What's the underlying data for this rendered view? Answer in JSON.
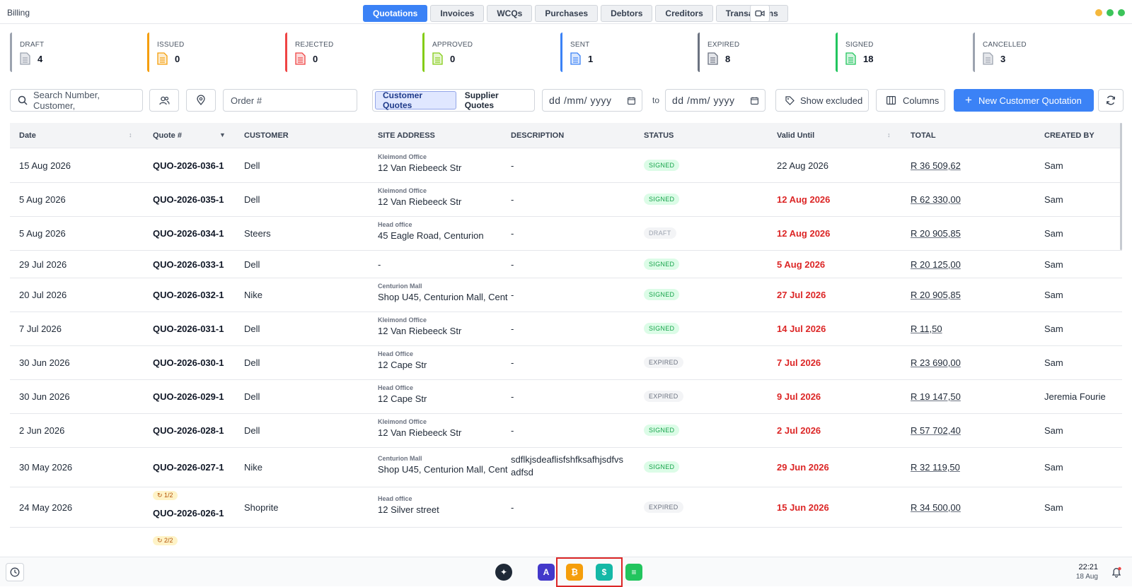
{
  "app": {
    "title": "Billing"
  },
  "nav": {
    "tabs": [
      {
        "label": "Quotations",
        "active": true
      },
      {
        "label": "Invoices",
        "active": false
      },
      {
        "label": "WCQs",
        "active": false
      },
      {
        "label": "Purchases",
        "active": false
      },
      {
        "label": "Debtors",
        "active": false
      },
      {
        "label": "Creditors",
        "active": false
      },
      {
        "label": "Transactions",
        "active": false
      }
    ]
  },
  "status_cards": [
    {
      "label": "DRAFT",
      "count": "4",
      "color": "#9ca3af"
    },
    {
      "label": "ISSUED",
      "count": "0",
      "color": "#f59e0b"
    },
    {
      "label": "REJECTED",
      "count": "0",
      "color": "#ef4444"
    },
    {
      "label": "APPROVED",
      "count": "0",
      "color": "#84cc16"
    },
    {
      "label": "SENT",
      "count": "1",
      "color": "#3b82f6"
    },
    {
      "label": "EXPIRED",
      "count": "8",
      "color": "#6b7280"
    },
    {
      "label": "SIGNED",
      "count": "18",
      "color": "#22c55e"
    },
    {
      "label": "CANCELLED",
      "count": "3",
      "color": "#9ca3af"
    }
  ],
  "toolbar": {
    "search_placeholder": "Search Number, Customer,",
    "order_placeholder": "Order #",
    "customer_quotes": "Customer Quotes",
    "supplier_quotes": "Supplier Quotes",
    "date_from_placeholder": "dd /mm/ yyyy",
    "to_label": "to",
    "date_to_placeholder": "dd /mm/ yyyy",
    "show_excluded": "Show excluded",
    "columns": "Columns",
    "new_quote": "New Customer Quotation"
  },
  "table": {
    "headers": {
      "date": "Date",
      "quote": "Quote #",
      "customer": "CUSTOMER",
      "site": "SITE ADDRESS",
      "description": "DESCRIPTION",
      "status": "STATUS",
      "valid": "Valid Until",
      "total": "TOTAL",
      "created": "CREATED BY"
    },
    "rows": [
      {
        "date": "15 Aug 2026",
        "quote": "QUO-2026-036-1",
        "customer": "Dell",
        "site_name": "Kleimond Office",
        "site_addr": "12 Van Riebeeck Str",
        "description": "-",
        "description2": "",
        "status": "SIGNED",
        "valid": "22 Aug 2026",
        "valid_overdue": false,
        "total": "R 36 509,62",
        "created": "Sam",
        "rev": ""
      },
      {
        "date": "5 Aug 2026",
        "quote": "QUO-2026-035-1",
        "customer": "Dell",
        "site_name": "Kleimond Office",
        "site_addr": "12 Van Riebeeck Str",
        "description": "-",
        "description2": "",
        "status": "SIGNED",
        "valid": "12 Aug 2026",
        "valid_overdue": true,
        "total": "R 62 330,00",
        "created": "Sam",
        "rev": ""
      },
      {
        "date": "5 Aug 2026",
        "quote": "QUO-2026-034-1",
        "customer": "Steers",
        "site_name": "Head office",
        "site_addr": "45 Eagle Road, Centurion",
        "description": "-",
        "description2": "",
        "status": "DRAFT",
        "valid": "12 Aug 2026",
        "valid_overdue": true,
        "total": "R 20 905,85",
        "created": "Sam",
        "rev": ""
      },
      {
        "date": "29 Jul 2026",
        "quote": "QUO-2026-033-1",
        "customer": "Dell",
        "site_name": "",
        "site_addr": "-",
        "description": "-",
        "description2": "",
        "status": "SIGNED",
        "valid": "5 Aug 2026",
        "valid_overdue": true,
        "total": "R 20 125,00",
        "created": "Sam",
        "rev": ""
      },
      {
        "date": "20 Jul 2026",
        "quote": "QUO-2026-032-1",
        "customer": "Nike",
        "site_name": "Centurion Mall",
        "site_addr": "Shop U45, Centurion Mall, Cent",
        "description": "-",
        "description2": "",
        "status": "SIGNED",
        "valid": "27 Jul 2026",
        "valid_overdue": true,
        "total": "R 20 905,85",
        "created": "Sam",
        "rev": ""
      },
      {
        "date": "7 Jul 2026",
        "quote": "QUO-2026-031-1",
        "customer": "Dell",
        "site_name": "Kleimond Office",
        "site_addr": "12 Van Riebeeck Str",
        "description": "-",
        "description2": "",
        "status": "SIGNED",
        "valid": "14 Jul 2026",
        "valid_overdue": true,
        "total": "R 11,50",
        "created": "Sam",
        "rev": ""
      },
      {
        "date": "30 Jun 2026",
        "quote": "QUO-2026-030-1",
        "customer": "Dell",
        "site_name": "Head Office",
        "site_addr": "12 Cape Str",
        "description": "-",
        "description2": "",
        "status": "EXPIRED",
        "valid": "7 Jul 2026",
        "valid_overdue": true,
        "total": "R 23 690,00",
        "created": "Sam",
        "rev": ""
      },
      {
        "date": "30 Jun 2026",
        "quote": "QUO-2026-029-1",
        "customer": "Dell",
        "site_name": "Head Office",
        "site_addr": "12 Cape Str",
        "description": "-",
        "description2": "",
        "status": "EXPIRED",
        "valid": "9 Jul 2026",
        "valid_overdue": true,
        "total": "R 19 147,50",
        "created": "Jeremia Fourie",
        "rev": ""
      },
      {
        "date": "2 Jun 2026",
        "quote": "QUO-2026-028-1",
        "customer": "Dell",
        "site_name": "Kleimond Office",
        "site_addr": "12 Van Riebeeck Str",
        "description": "-",
        "description2": "",
        "status": "SIGNED",
        "valid": "2 Jul 2026",
        "valid_overdue": true,
        "total": "R 57 702,40",
        "created": "Sam",
        "rev": ""
      },
      {
        "date": "30 May 2026",
        "quote": "QUO-2026-027-1",
        "customer": "Nike",
        "site_name": "Centurion Mall",
        "site_addr": "Shop U45, Centurion Mall, Cent",
        "description": "sdflkjsdeaflisfshfksafhjsdfvs",
        "description2": "adfsd",
        "status": "SIGNED",
        "valid": "29 Jun 2026",
        "valid_overdue": true,
        "total": "R 32 119,50",
        "created": "Sam",
        "rev": ""
      },
      {
        "date": "24 May 2026",
        "quote": "QUO-2026-026-1",
        "customer": "Shoprite",
        "site_name": "Head office",
        "site_addr": "12 Silver street",
        "description": "-",
        "description2": "",
        "status": "EXPIRED",
        "valid": "15 Jun 2026",
        "valid_overdue": true,
        "total": "R 34 500,00",
        "created": "Sam",
        "rev": "1/2"
      }
    ],
    "partial_row_rev": "2/2"
  },
  "taskbar": {
    "time": "22:21",
    "date": "18 Aug",
    "apps": [
      {
        "name": "ops-app",
        "color": "#4338ca",
        "glyph": "A"
      },
      {
        "name": "billing-app",
        "color": "#f59e0b",
        "glyph": "₿"
      },
      {
        "name": "quotes-app",
        "color": "#14b8a6",
        "glyph": "$"
      },
      {
        "name": "docs-app",
        "color": "#22c55e",
        "glyph": "≡"
      }
    ]
  },
  "colors": {
    "accent": "#3b82f6",
    "overdue": "#dc2626",
    "signed": "#16a34a"
  }
}
